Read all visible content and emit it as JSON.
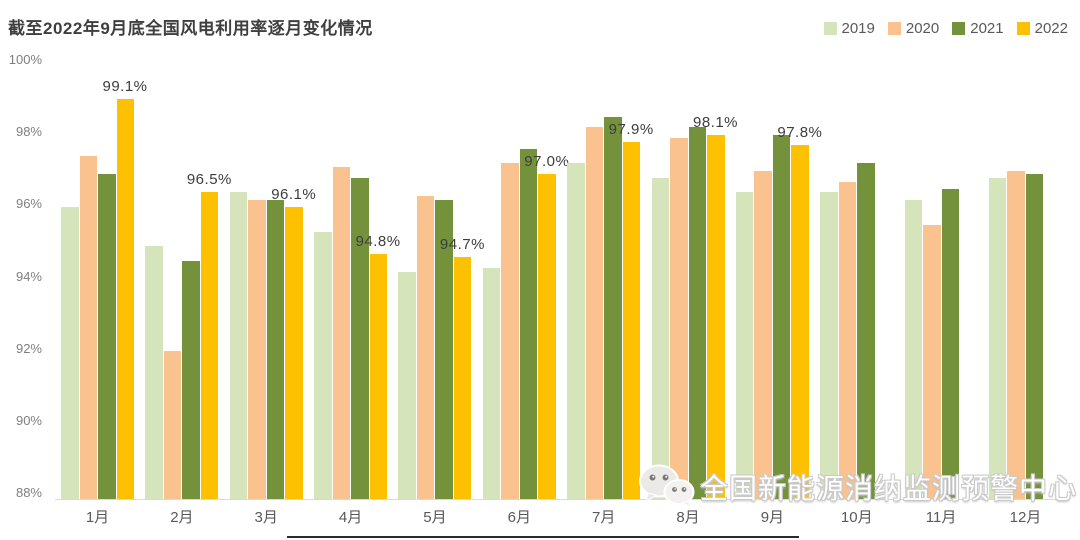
{
  "title": "截至2022年9月底全国风电利用率逐月变化情况",
  "legend": [
    {
      "label": "2019",
      "color": "#d6e4bb"
    },
    {
      "label": "2020",
      "color": "#f9c28f"
    },
    {
      "label": "2021",
      "color": "#74923c"
    },
    {
      "label": "2022",
      "color": "#fec101"
    }
  ],
  "watermark": {
    "icon": "wechat-icon",
    "text": "全国新能源消纳监测预警中心"
  },
  "chart_data": {
    "type": "bar",
    "title": "截至2022年9月底全国风电利用率逐月变化情况",
    "categories": [
      "1月",
      "2月",
      "3月",
      "4月",
      "5月",
      "6月",
      "7月",
      "8月",
      "9月",
      "10月",
      "11月",
      "12月"
    ],
    "series": [
      {
        "name": "2019",
        "color": "#d6e4bb",
        "values": [
          96.1,
          95.0,
          96.5,
          95.4,
          94.3,
          94.4,
          97.3,
          96.9,
          96.5,
          96.5,
          96.3,
          96.9
        ]
      },
      {
        "name": "2020",
        "color": "#f9c28f",
        "values": [
          97.5,
          92.1,
          96.3,
          97.2,
          96.4,
          97.3,
          98.3,
          98.0,
          97.1,
          96.8,
          95.6,
          97.1
        ]
      },
      {
        "name": "2021",
        "color": "#74923c",
        "values": [
          97.0,
          94.6,
          96.3,
          96.9,
          96.3,
          97.7,
          98.6,
          98.3,
          98.1,
          97.3,
          96.6,
          97.0
        ]
      },
      {
        "name": "2022",
        "color": "#fec101",
        "values": [
          99.1,
          96.5,
          96.1,
          94.8,
          94.7,
          97.0,
          97.9,
          98.1,
          97.8,
          null,
          null,
          null
        ],
        "data_labels": [
          "99.1%",
          "96.5%",
          "96.1%",
          "94.8%",
          "94.7%",
          "97.0%",
          "97.9%",
          "98.1%",
          "97.8%",
          null,
          null,
          null
        ]
      }
    ],
    "ylabel": "",
    "xlabel": "",
    "ylim": [
      88,
      100
    ],
    "yticks": [
      "100%",
      "98%",
      "96%",
      "94%",
      "92%",
      "90%",
      "88%"
    ],
    "grid": false,
    "legend_position": "top-right"
  }
}
